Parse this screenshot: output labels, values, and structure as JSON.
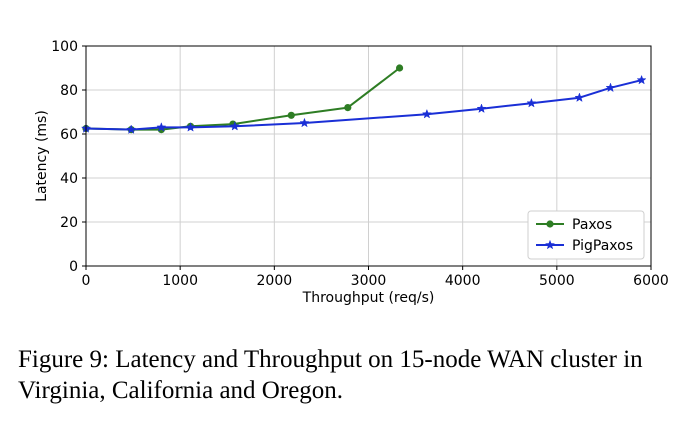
{
  "chart_data": {
    "type": "line",
    "xlabel": "Throughput (req/s)",
    "ylabel": "Latency (ms)",
    "xlim": [
      0,
      6000
    ],
    "ylim": [
      0,
      100
    ],
    "xticks": [
      0,
      1000,
      2000,
      3000,
      4000,
      5000,
      6000
    ],
    "yticks": [
      0,
      20,
      40,
      60,
      80,
      100
    ],
    "grid": true,
    "legend_position": "lower-right",
    "series": [
      {
        "name": "Paxos",
        "color": "#2e7d24",
        "marker": "circle",
        "x": [
          0,
          480,
          800,
          1110,
          1560,
          2180,
          2780,
          3330
        ],
        "y": [
          62.5,
          62.0,
          62.0,
          63.5,
          64.5,
          68.5,
          72.0,
          90.0
        ]
      },
      {
        "name": "PigPaxos",
        "color": "#1a2fd6",
        "marker": "star",
        "x": [
          0,
          480,
          800,
          1110,
          1580,
          2320,
          3620,
          4200,
          4730,
          5240,
          5570,
          5900
        ],
        "y": [
          62.5,
          62.0,
          63.0,
          63.0,
          63.5,
          65.0,
          69.0,
          71.5,
          74.0,
          76.5,
          81.0,
          84.5
        ]
      }
    ]
  },
  "caption": {
    "text": "Figure 9: Latency and Throughput on 15-node WAN cluster in Virginia, California and Oregon."
  }
}
